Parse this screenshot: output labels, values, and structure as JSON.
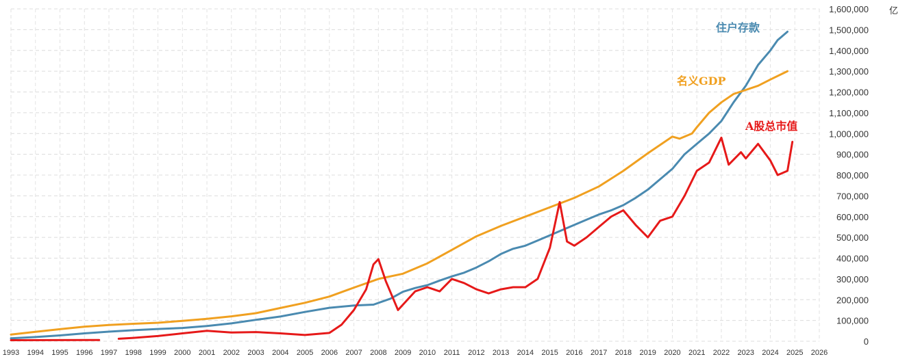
{
  "chart_data": {
    "type": "line",
    "unit_label": "亿",
    "ylim": [
      0,
      1600000
    ],
    "y_ticks": [
      "0",
      "100,000",
      "200,000",
      "300,000",
      "400,000",
      "500,000",
      "600,000",
      "700,000",
      "800,000",
      "900,000",
      "1,000,000",
      "1,100,000",
      "1,200,000",
      "1,300,000",
      "1,400,000",
      "1,500,000",
      "1,600,000"
    ],
    "xlim": [
      1993,
      2026
    ],
    "x_ticks": [
      "1993",
      "1994",
      "1995",
      "1996",
      "1997",
      "1998",
      "1999",
      "2000",
      "2001",
      "2002",
      "2003",
      "2004",
      "2005",
      "2006",
      "2007",
      "2008",
      "2009",
      "2010",
      "2011",
      "2012",
      "2013",
      "2014",
      "2015",
      "2016",
      "2017",
      "2018",
      "2019",
      "2020",
      "2021",
      "2022",
      "2023",
      "2024",
      "2025",
      "2026"
    ],
    "grid": true,
    "series": [
      {
        "name": "住户存款",
        "color": "#4a8ab0",
        "points": [
          [
            1993.0,
            14000
          ],
          [
            1994.0,
            20000
          ],
          [
            1995.0,
            28000
          ],
          [
            1996.0,
            38000
          ],
          [
            1997.0,
            46000
          ],
          [
            1998.0,
            53000
          ],
          [
            1999.0,
            59000
          ],
          [
            2000.0,
            64000
          ],
          [
            2001.0,
            73000
          ],
          [
            2002.0,
            86000
          ],
          [
            2003.0,
            103000
          ],
          [
            2004.0,
            119000
          ],
          [
            2005.0,
            141000
          ],
          [
            2006.0,
            161000
          ],
          [
            2007.0,
            172000
          ],
          [
            2007.8,
            176000
          ],
          [
            2008.5,
            205000
          ],
          [
            2009.0,
            238000
          ],
          [
            2009.5,
            256000
          ],
          [
            2010.0,
            270000
          ],
          [
            2010.5,
            292000
          ],
          [
            2011.0,
            312000
          ],
          [
            2011.5,
            330000
          ],
          [
            2012.0,
            355000
          ],
          [
            2012.5,
            385000
          ],
          [
            2013.0,
            420000
          ],
          [
            2013.5,
            445000
          ],
          [
            2014.0,
            460000
          ],
          [
            2014.5,
            485000
          ],
          [
            2015.0,
            510000
          ],
          [
            2015.5,
            535000
          ],
          [
            2016.0,
            560000
          ],
          [
            2016.5,
            585000
          ],
          [
            2017.0,
            610000
          ],
          [
            2017.5,
            630000
          ],
          [
            2018.0,
            655000
          ],
          [
            2018.5,
            690000
          ],
          [
            2019.0,
            730000
          ],
          [
            2019.5,
            780000
          ],
          [
            2020.0,
            830000
          ],
          [
            2020.5,
            900000
          ],
          [
            2021.0,
            950000
          ],
          [
            2021.5,
            1000000
          ],
          [
            2022.0,
            1060000
          ],
          [
            2022.5,
            1150000
          ],
          [
            2023.0,
            1230000
          ],
          [
            2023.5,
            1330000
          ],
          [
            2024.0,
            1400000
          ],
          [
            2024.3,
            1450000
          ],
          [
            2024.7,
            1490000
          ]
        ]
      },
      {
        "name": "名义GDP",
        "color": "#f0a020",
        "points": [
          [
            1993.0,
            32000
          ],
          [
            1994.0,
            45000
          ],
          [
            1995.0,
            58000
          ],
          [
            1996.0,
            70000
          ],
          [
            1997.0,
            78000
          ],
          [
            1998.0,
            84000
          ],
          [
            1999.0,
            89000
          ],
          [
            2000.0,
            98000
          ],
          [
            2001.0,
            108000
          ],
          [
            2002.0,
            120000
          ],
          [
            2003.0,
            135000
          ],
          [
            2004.0,
            160000
          ],
          [
            2005.0,
            185000
          ],
          [
            2006.0,
            215000
          ],
          [
            2007.0,
            258000
          ],
          [
            2008.0,
            300000
          ],
          [
            2009.0,
            325000
          ],
          [
            2010.0,
            375000
          ],
          [
            2011.0,
            440000
          ],
          [
            2012.0,
            505000
          ],
          [
            2013.0,
            555000
          ],
          [
            2014.0,
            600000
          ],
          [
            2015.0,
            645000
          ],
          [
            2016.0,
            690000
          ],
          [
            2017.0,
            745000
          ],
          [
            2018.0,
            820000
          ],
          [
            2019.0,
            905000
          ],
          [
            2020.0,
            985000
          ],
          [
            2020.3,
            975000
          ],
          [
            2020.8,
            1000000
          ],
          [
            2021.0,
            1030000
          ],
          [
            2021.5,
            1100000
          ],
          [
            2022.0,
            1150000
          ],
          [
            2022.5,
            1190000
          ],
          [
            2023.0,
            1210000
          ],
          [
            2023.5,
            1230000
          ],
          [
            2024.0,
            1260000
          ],
          [
            2024.7,
            1300000
          ]
        ]
      },
      {
        "name": "A股总市值",
        "color": "#e61919",
        "points": [
          [
            1993.0,
            5000
          ],
          [
            1996.6,
            6000
          ],
          [
            null,
            null
          ],
          [
            1997.4,
            12000
          ],
          [
            1998.0,
            16000
          ],
          [
            1999.0,
            25000
          ],
          [
            2000.0,
            38000
          ],
          [
            2001.0,
            50000
          ],
          [
            2001.5,
            46000
          ],
          [
            2002.0,
            42000
          ],
          [
            2003.0,
            44000
          ],
          [
            2004.0,
            38000
          ],
          [
            2005.0,
            30000
          ],
          [
            2006.0,
            40000
          ],
          [
            2006.5,
            80000
          ],
          [
            2007.0,
            150000
          ],
          [
            2007.5,
            250000
          ],
          [
            2007.8,
            370000
          ],
          [
            2008.0,
            395000
          ],
          [
            2008.3,
            290000
          ],
          [
            2008.8,
            150000
          ],
          [
            2009.5,
            240000
          ],
          [
            2010.0,
            260000
          ],
          [
            2010.5,
            240000
          ],
          [
            2011.0,
            300000
          ],
          [
            2011.5,
            280000
          ],
          [
            2012.0,
            250000
          ],
          [
            2012.5,
            230000
          ],
          [
            2013.0,
            250000
          ],
          [
            2013.5,
            260000
          ],
          [
            2014.0,
            260000
          ],
          [
            2014.5,
            300000
          ],
          [
            2015.0,
            450000
          ],
          [
            2015.4,
            670000
          ],
          [
            2015.7,
            480000
          ],
          [
            2016.0,
            460000
          ],
          [
            2016.5,
            500000
          ],
          [
            2017.0,
            550000
          ],
          [
            2017.5,
            600000
          ],
          [
            2018.0,
            630000
          ],
          [
            2018.5,
            560000
          ],
          [
            2019.0,
            500000
          ],
          [
            2019.5,
            580000
          ],
          [
            2020.0,
            600000
          ],
          [
            2020.5,
            700000
          ],
          [
            2021.0,
            820000
          ],
          [
            2021.5,
            860000
          ],
          [
            2022.0,
            980000
          ],
          [
            2022.3,
            850000
          ],
          [
            2022.8,
            910000
          ],
          [
            2023.0,
            880000
          ],
          [
            2023.5,
            950000
          ],
          [
            2024.0,
            870000
          ],
          [
            2024.3,
            800000
          ],
          [
            2024.7,
            820000
          ],
          [
            2024.9,
            960000
          ]
        ]
      }
    ]
  },
  "labels": {
    "deposits": "住户存款",
    "gdp": "名义GDP",
    "market_cap": "A股总市值"
  }
}
